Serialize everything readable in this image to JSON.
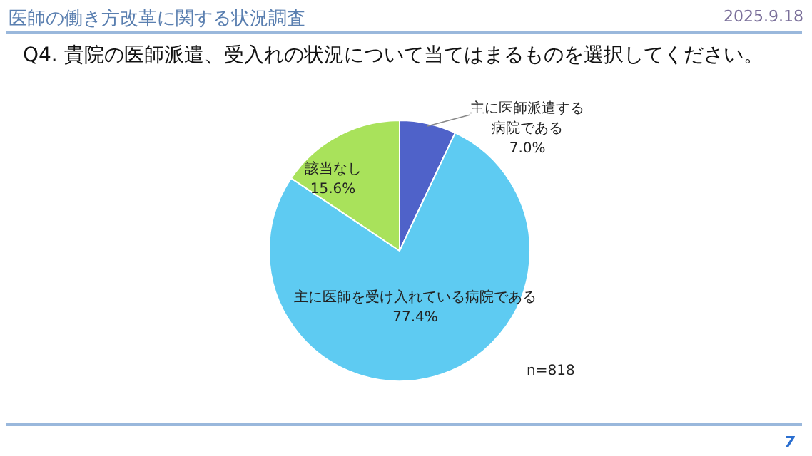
{
  "chart_data": {
    "type": "pie",
    "title": "医師の働き方改革に関する状況調査",
    "subtitle": "Q4.  貴院の医師派遣、受入れの状況について当てはまるものを選択してください。",
    "categories": [
      "主に医師派遣する病院である",
      "主に医師を受け入れている病院である",
      "該当なし"
    ],
    "values": [
      7.0,
      77.4,
      15.6
    ],
    "value_labels": [
      "7.0%",
      "77.4%",
      "15.6%"
    ],
    "colors": [
      "#4f62c9",
      "#5ecbf2",
      "#a9e25b"
    ],
    "legend": false,
    "annotations": [
      "2025.9.18",
      "n=818",
      "7"
    ]
  }
}
